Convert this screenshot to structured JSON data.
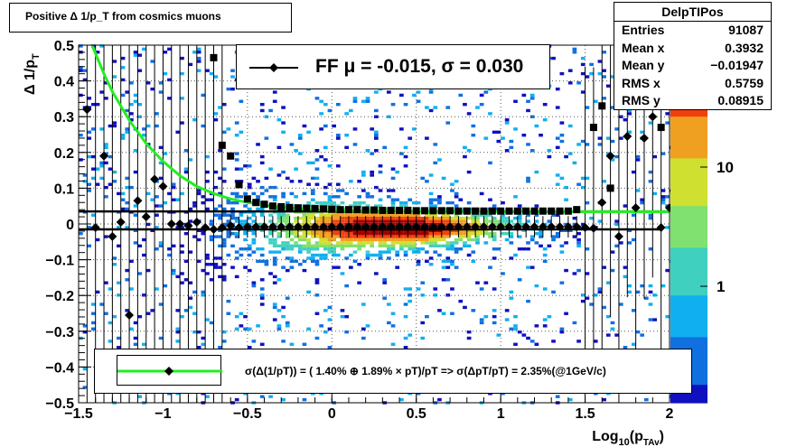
{
  "title": "Positive Δ 1/p_T from cosmics muons",
  "stats": {
    "name": "DelpTIPos",
    "rows": [
      {
        "label": "Entries",
        "value": "91087"
      },
      {
        "label": "Mean x",
        "value": "0.3932"
      },
      {
        "label": "Mean y",
        "value": "−0.01947"
      },
      {
        "label": "RMS x",
        "value": "0.5759"
      },
      {
        "label": "RMS y",
        "value": "0.08915"
      }
    ]
  },
  "legend_top": {
    "text": "FF μ = -0.015, σ =   0.030"
  },
  "legend_bottom": {
    "text": "σ(Δ(1/pT)) = ( 1.40% ⊕  1.89% × pT)/pT => σ(ΔpT/pT) =  2.35%(@1GeV/c)"
  },
  "colors": {
    "fit_curve": "#22ee22",
    "marker": "#000000",
    "palette": [
      "#1010c0",
      "#1070e0",
      "#10b0f0",
      "#40d0c0",
      "#80e070",
      "#d0e030",
      "#f0a020",
      "#f04010",
      "#a00000"
    ]
  },
  "chart_data": {
    "type": "heatmap",
    "xlabel": "Log_10(p_TAv)",
    "ylabel": "Δ 1/p_T",
    "xlim": [
      -1.5,
      2.0
    ],
    "ylim": [
      -0.5,
      0.5
    ],
    "x_ticks": [
      "−1.5",
      "−1",
      "−0.5",
      "0",
      "0.5",
      "1",
      "1.5",
      "2"
    ],
    "y_ticks": [
      "0.5",
      "0.4",
      "0.3",
      "0.2",
      "0.1",
      "0",
      "−0.1",
      "−0.2",
      "−0.3",
      "−0.4",
      "−0.5"
    ],
    "z_scale": "log",
    "z_ticks": [
      "10",
      "1"
    ],
    "mean_points": {
      "x": [
        -1.45,
        -1.4,
        -1.35,
        -1.3,
        -1.25,
        -1.2,
        -1.15,
        -1.1,
        -1.05,
        -1.0,
        -0.95,
        -0.9,
        -0.85,
        -0.8,
        -0.75,
        -0.7,
        -0.65,
        -0.6,
        -0.55,
        -0.5,
        -0.45,
        -0.4,
        -0.35,
        -0.3,
        -0.25,
        -0.2,
        -0.15,
        -0.1,
        -0.05,
        0.0,
        0.05,
        0.1,
        0.15,
        0.2,
        0.25,
        0.3,
        0.35,
        0.4,
        0.45,
        0.5,
        0.55,
        0.6,
        0.65,
        0.7,
        0.75,
        0.8,
        0.85,
        0.9,
        0.95,
        1.0,
        1.05,
        1.1,
        1.15,
        1.2,
        1.25,
        1.3,
        1.35,
        1.4,
        1.45,
        1.5,
        1.55,
        1.6,
        1.65,
        1.7,
        1.75,
        1.8,
        1.85,
        1.9,
        1.95,
        2.0
      ],
      "y": [
        0.32,
        -0.01,
        0.19,
        -0.035,
        0.005,
        -0.255,
        0.065,
        0.02,
        0.125,
        0.105,
        0.0,
        0.0,
        -0.005,
        0.005,
        -0.01,
        -0.015,
        -0.01,
        -0.005,
        -0.01,
        -0.008,
        -0.008,
        -0.008,
        -0.008,
        -0.008,
        -0.008,
        -0.008,
        -0.008,
        -0.008,
        -0.008,
        -0.008,
        -0.008,
        -0.008,
        -0.008,
        -0.008,
        -0.008,
        -0.008,
        -0.008,
        -0.008,
        -0.008,
        -0.008,
        -0.008,
        -0.008,
        -0.008,
        -0.008,
        -0.008,
        -0.008,
        -0.008,
        -0.008,
        -0.008,
        -0.008,
        -0.008,
        -0.008,
        -0.008,
        -0.008,
        -0.008,
        -0.008,
        -0.008,
        -0.008,
        -0.008,
        -0.01,
        -0.012,
        0.06,
        0.19,
        -0.035,
        0.245,
        0.045,
        0.24,
        0.3,
        -0.01,
        0.045
      ]
    },
    "sigma_points": {
      "x": [
        -0.7,
        -0.65,
        -0.6,
        -0.55,
        -0.5,
        -0.45,
        -0.4,
        -0.35,
        -0.3,
        -0.25,
        -0.2,
        -0.15,
        -0.1,
        -0.05,
        0.0,
        0.05,
        0.1,
        0.15,
        0.2,
        0.25,
        0.3,
        0.35,
        0.4,
        0.45,
        0.5,
        0.55,
        0.6,
        0.65,
        0.7,
        0.75,
        0.8,
        0.85,
        0.9,
        0.95,
        1.0,
        1.05,
        1.1,
        1.15,
        1.2,
        1.25,
        1.3,
        1.35,
        1.4,
        1.45,
        1.55,
        1.6,
        1.65,
        1.75,
        1.85,
        1.95
      ],
      "y": [
        0.465,
        0.22,
        0.19,
        0.11,
        0.07,
        0.06,
        0.055,
        0.05,
        0.048,
        0.046,
        0.045,
        0.044,
        0.043,
        0.042,
        0.041,
        0.04,
        0.04,
        0.04,
        0.039,
        0.039,
        0.038,
        0.038,
        0.038,
        0.038,
        0.037,
        0.037,
        0.037,
        0.037,
        0.037,
        0.036,
        0.036,
        0.036,
        0.036,
        0.036,
        0.036,
        0.036,
        0.036,
        0.036,
        0.036,
        0.036,
        0.036,
        0.036,
        0.036,
        0.04,
        0.27,
        0.33,
        0.1,
        0.33,
        0.36,
        0.27
      ]
    },
    "fit_curve": {
      "x": [
        -1.42,
        -1.35,
        -1.3,
        -1.2,
        -1.1,
        -1.0,
        -0.9,
        -0.8,
        -0.7,
        -0.6,
        -0.5,
        -0.4,
        -0.3,
        -0.2,
        -0.1,
        0.0,
        0.2,
        0.5,
        1.0,
        1.5,
        2.0
      ],
      "y": [
        0.5,
        0.42,
        0.37,
        0.29,
        0.225,
        0.175,
        0.135,
        0.105,
        0.085,
        0.07,
        0.06,
        0.052,
        0.047,
        0.043,
        0.04,
        0.038,
        0.036,
        0.035,
        0.034,
        0.034,
        0.034
      ]
    },
    "fit_line_mean": -0.015,
    "fit_line_sigma": 0.03
  }
}
